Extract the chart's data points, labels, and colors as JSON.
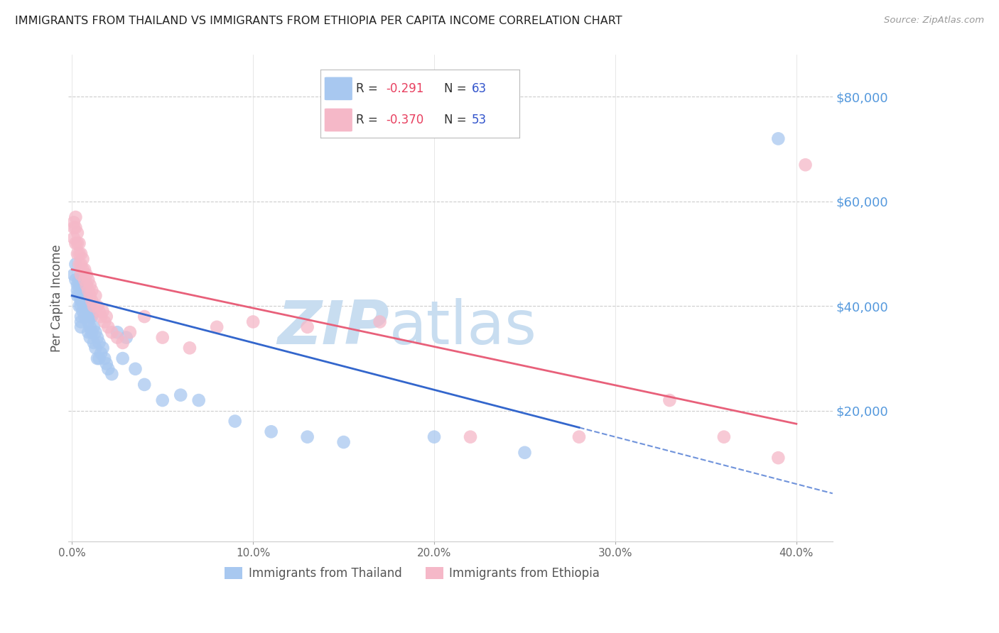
{
  "title": "IMMIGRANTS FROM THAILAND VS IMMIGRANTS FROM ETHIOPIA PER CAPITA INCOME CORRELATION CHART",
  "source": "Source: ZipAtlas.com",
  "ylabel": "Per Capita Income",
  "ytick_labels": [
    "$80,000",
    "$60,000",
    "$40,000",
    "$20,000"
  ],
  "ytick_values": [
    80000,
    60000,
    40000,
    20000
  ],
  "ylim": [
    -5000,
    88000
  ],
  "xlim": [
    -0.002,
    0.42
  ],
  "legend_r_thailand": "R = -0.291",
  "legend_n_thailand": "N = 63",
  "legend_r_ethiopia": "R = -0.370",
  "legend_n_ethiopia": "N = 53",
  "color_thailand": "#a8c8f0",
  "color_ethiopia": "#f5b8c8",
  "color_line_thailand": "#3366cc",
  "color_line_ethiopia": "#e8607a",
  "color_ylabel": "#555555",
  "color_ytick": "#5599dd",
  "color_title": "#222222",
  "color_source": "#999999",
  "color_watermark_zip": "#c8ddf0",
  "color_watermark_atlas": "#c8ddf0",
  "watermark_zip": "ZIP",
  "watermark_atlas": "atlas",
  "grid_color": "#cccccc",
  "thailand_points_x": [
    0.001,
    0.002,
    0.002,
    0.003,
    0.003,
    0.003,
    0.004,
    0.004,
    0.004,
    0.004,
    0.005,
    0.005,
    0.005,
    0.005,
    0.005,
    0.006,
    0.006,
    0.006,
    0.006,
    0.007,
    0.007,
    0.007,
    0.008,
    0.008,
    0.008,
    0.009,
    0.009,
    0.009,
    0.01,
    0.01,
    0.01,
    0.01,
    0.011,
    0.011,
    0.012,
    0.012,
    0.013,
    0.013,
    0.014,
    0.014,
    0.015,
    0.015,
    0.016,
    0.017,
    0.018,
    0.019,
    0.02,
    0.022,
    0.025,
    0.028,
    0.03,
    0.035,
    0.04,
    0.05,
    0.06,
    0.07,
    0.09,
    0.11,
    0.13,
    0.15,
    0.2,
    0.25,
    0.39
  ],
  "thailand_points_y": [
    46000,
    48000,
    45000,
    44000,
    43000,
    42000,
    45000,
    44000,
    42000,
    40000,
    41000,
    40000,
    38000,
    37000,
    36000,
    44000,
    43000,
    41000,
    39000,
    43000,
    40000,
    38000,
    44000,
    42000,
    40000,
    38000,
    37000,
    35000,
    40000,
    38000,
    36000,
    34000,
    38000,
    35000,
    36000,
    33000,
    35000,
    32000,
    34000,
    30000,
    33000,
    30000,
    31000,
    32000,
    30000,
    29000,
    28000,
    27000,
    35000,
    30000,
    34000,
    28000,
    25000,
    22000,
    23000,
    22000,
    18000,
    16000,
    15000,
    14000,
    15000,
    12000,
    72000
  ],
  "ethiopia_points_x": [
    0.001,
    0.001,
    0.001,
    0.002,
    0.002,
    0.002,
    0.003,
    0.003,
    0.003,
    0.004,
    0.004,
    0.004,
    0.005,
    0.005,
    0.005,
    0.006,
    0.006,
    0.007,
    0.007,
    0.008,
    0.008,
    0.009,
    0.009,
    0.01,
    0.01,
    0.011,
    0.011,
    0.012,
    0.013,
    0.014,
    0.015,
    0.016,
    0.017,
    0.018,
    0.019,
    0.02,
    0.022,
    0.025,
    0.028,
    0.032,
    0.04,
    0.05,
    0.065,
    0.08,
    0.1,
    0.13,
    0.17,
    0.22,
    0.28,
    0.33,
    0.36,
    0.39,
    0.405
  ],
  "ethiopia_points_y": [
    56000,
    55000,
    53000,
    57000,
    55000,
    52000,
    54000,
    52000,
    50000,
    52000,
    50000,
    48000,
    50000,
    48000,
    46000,
    49000,
    47000,
    47000,
    45000,
    46000,
    44000,
    45000,
    43000,
    44000,
    42000,
    43000,
    41000,
    40000,
    42000,
    40000,
    39000,
    38000,
    39000,
    37000,
    38000,
    36000,
    35000,
    34000,
    33000,
    35000,
    38000,
    34000,
    32000,
    36000,
    37000,
    36000,
    37000,
    15000,
    15000,
    22000,
    15000,
    11000,
    67000
  ]
}
